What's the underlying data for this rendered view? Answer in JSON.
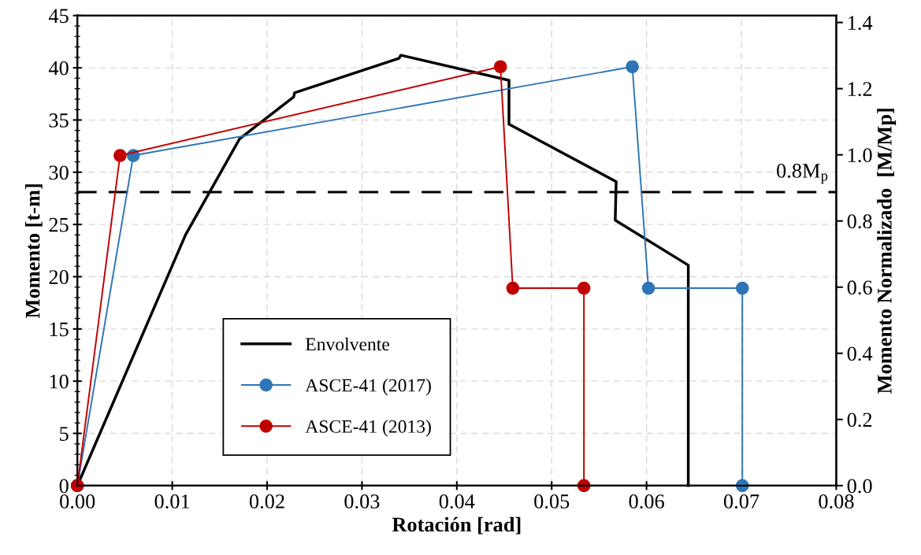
{
  "chart_data": {
    "type": "line",
    "xlabel": "Rotación [rad]",
    "ylabel": "Momento [t-m]",
    "y2label": "Momento Normalizado  [M/Mp]",
    "xlim": [
      0,
      0.08
    ],
    "xticks": [
      {
        "value": 0,
        "label": "0.00"
      },
      {
        "value": 0.01,
        "label": "0.01"
      },
      {
        "value": 0.02,
        "label": "0.02"
      },
      {
        "value": 0.03,
        "label": "0.03"
      },
      {
        "value": 0.04,
        "label": "0.04"
      },
      {
        "value": 0.05,
        "label": "0.05"
      },
      {
        "value": 0.06,
        "label": "0.06"
      },
      {
        "value": 0.07,
        "label": "0.07"
      },
      {
        "value": 0.08,
        "label": "0.08"
      }
    ],
    "ylim": [
      0,
      45
    ],
    "yticks": [
      0,
      5,
      10,
      15,
      20,
      25,
      30,
      35,
      40,
      45
    ],
    "y2lim": [
      0,
      1.421
    ],
    "y2ticks": [
      {
        "value": 0,
        "label": "0.0"
      },
      {
        "value": 0.2,
        "label": "0.2"
      },
      {
        "value": 0.4,
        "label": "0.4"
      },
      {
        "value": 0.6,
        "label": "0.6"
      },
      {
        "value": 0.8,
        "label": "0.8"
      },
      {
        "value": 1.0,
        "label": "1.0"
      },
      {
        "value": 1.2,
        "label": "1.2"
      },
      {
        "value": 1.4,
        "label": "1.4"
      }
    ],
    "grid": true,
    "legend": "bottom left",
    "ref_lines": [
      {
        "axis": "y",
        "value": 28.1,
        "label": "0.8M$_{p}$",
        "color": "#000000",
        "line_style": "dashed"
      }
    ],
    "series": [
      {
        "name": "Envolvente",
        "color": "#000000",
        "marker": "none",
        "x": [
          0,
          0.0114,
          0.0171,
          0.0228,
          0.0229,
          0.0339,
          0.0341,
          0.0455,
          0.0455,
          0.0568,
          0.0567,
          0.0644,
          0.0644
        ],
        "values": [
          0,
          24.0,
          33.2,
          37.2,
          37.6,
          40.9,
          41.2,
          38.8,
          34.6,
          29.1,
          25.4,
          21.1,
          0
        ]
      },
      {
        "name": "ASCE-41 (2017)",
        "color": "#2e75b6",
        "marker": "circle",
        "x": [
          0,
          0.0059,
          0.0585,
          0.0602,
          0.0701,
          0.0701
        ],
        "values": [
          0,
          31.6,
          40.1,
          18.9,
          18.9,
          0
        ]
      },
      {
        "name": "ASCE-41 (2013)",
        "color": "#c00000",
        "marker": "circle",
        "x": [
          0,
          0.0045,
          0.0446,
          0.0459,
          0.0534,
          0.0534
        ],
        "values": [
          0,
          31.6,
          40.1,
          18.9,
          18.9,
          0
        ]
      }
    ]
  }
}
